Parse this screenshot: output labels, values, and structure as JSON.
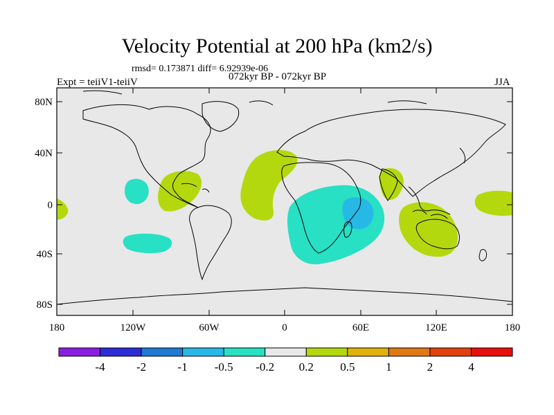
{
  "title": "Velocity Potential at 200 hPa (km2/s)",
  "stats": "rmsd= 0.173871 diff= 6.92939e-06",
  "period": "072kyr BP - 072kyr BP",
  "experiment": "Expt = teiiV1-teiiV",
  "season": "JJA",
  "lat_ticks": [
    "80N",
    "40N",
    "0",
    "40S",
    "80S"
  ],
  "lon_ticks": [
    "180",
    "120W",
    "60W",
    "0",
    "60E",
    "120E",
    "180"
  ],
  "colorbar": {
    "labels": [
      "-4",
      "-2",
      "-1",
      "-0.5",
      "-0.2",
      "0.2",
      "0.5",
      "1",
      "2",
      "4"
    ],
    "colors": [
      "#8a1ee0",
      "#2d2dd6",
      "#1f7ad2",
      "#26b9e6",
      "#28e0c4",
      "#e8e8e8",
      "#b4d80e",
      "#e0b20c",
      "#e07814",
      "#e0420e",
      "#e80e0e"
    ]
  },
  "chart_data": {
    "type": "map",
    "projection": "cylindrical-equidistant",
    "lon_range": [
      -180,
      180
    ],
    "lat_range": [
      -90,
      90
    ],
    "fill_colors": {
      "neg_0.2_0.5": "#28e0c4",
      "neg_0.5_1": "#26b9e6",
      "pos_0.2_0.5": "#b4d80e",
      "background": "#e8e8e8"
    }
  }
}
